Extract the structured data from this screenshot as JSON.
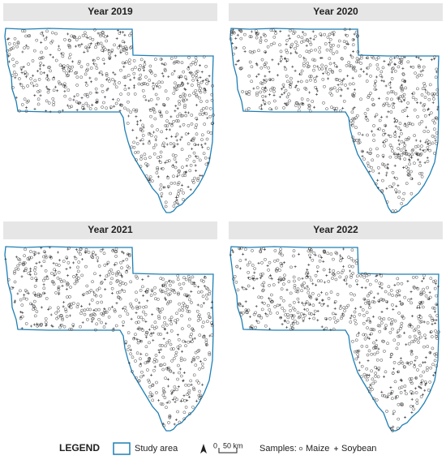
{
  "panels": [
    {
      "title": "Year 2019"
    },
    {
      "title": "Year 2020"
    },
    {
      "title": "Year 2021"
    },
    {
      "title": "Year 2022"
    }
  ],
  "legend": {
    "title": "LEGEND",
    "study_area": "Study area",
    "scale_zero": "0",
    "scale_label": "50 km",
    "samples_label": "Samples:",
    "maize": "Maize",
    "soybean": "Soybean"
  }
}
